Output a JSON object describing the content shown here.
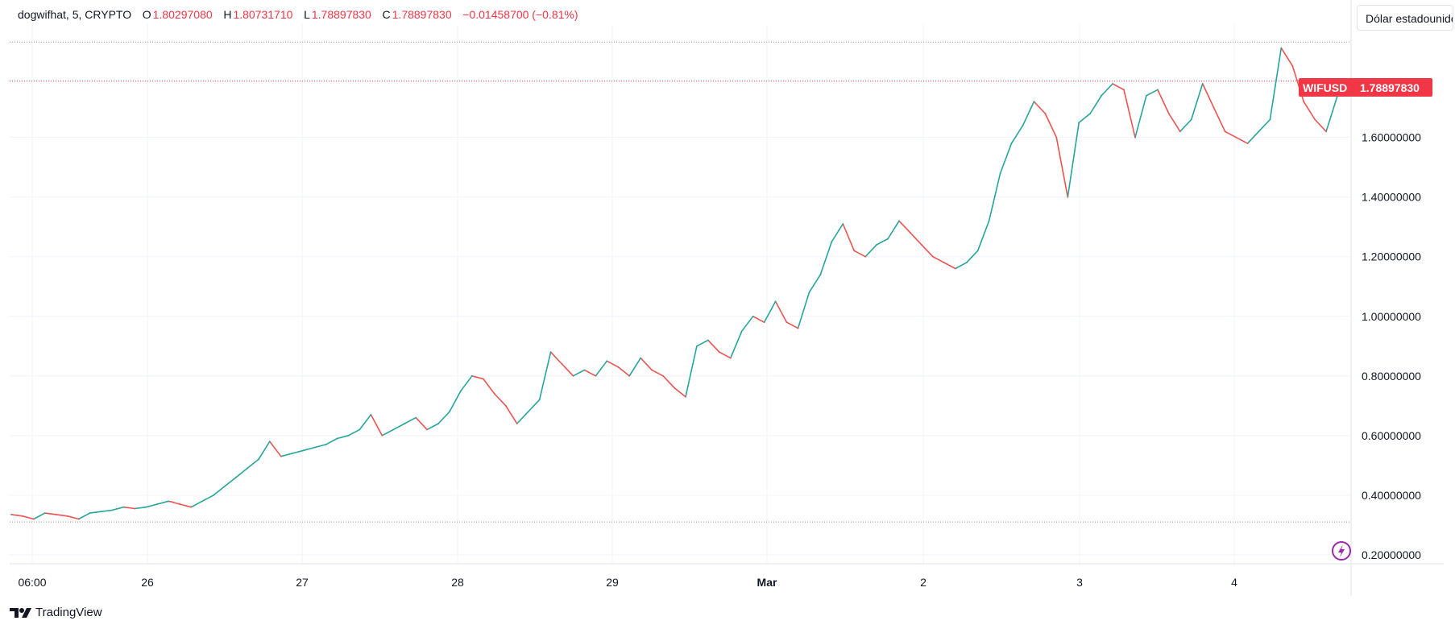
{
  "legend": {
    "symbol": "dogwifhat, 5, CRYPTO",
    "o_label": "O",
    "o_value": "1.80297080",
    "h_label": "H",
    "h_value": "1.80731710",
    "l_label": "L",
    "l_value": "1.78897830",
    "c_label": "C",
    "c_value": "1.78897830",
    "change": "−0.01458700 (−0.81%)"
  },
  "currency_button": "Dólar estadounidense",
  "branding": "TradingView",
  "price_tag": {
    "ticker": "WIFUSD",
    "price": "1.78897830"
  },
  "colors": {
    "up": "#26a69a",
    "down": "#ef5350",
    "tag": "#f23645",
    "grid": "#f0f3fa",
    "accent": "#9c27b0"
  },
  "icons": {
    "lightning": "lightning-icon",
    "logo": "tradingview-logo-icon"
  },
  "chart_data": {
    "type": "line",
    "title": "",
    "xlabel": "",
    "ylabel": "",
    "x_ticks": [
      "06:00",
      "26",
      "27",
      "28",
      "29",
      "Mar",
      "2",
      "3",
      "4"
    ],
    "y_ticks": [
      "0.20000000",
      "0.40000000",
      "0.60000000",
      "0.80000000",
      "1.00000000",
      "1.20000000",
      "1.40000000",
      "1.60000000"
    ],
    "ylim": [
      0.17,
      1.98
    ],
    "grid": true,
    "reference_lines": {
      "high": 1.92,
      "last": 1.7889783,
      "low": 0.31
    },
    "series": [
      {
        "values": [
          0.335,
          0.33,
          0.32,
          0.34,
          0.335,
          0.33,
          0.32,
          0.34,
          0.345,
          0.35,
          0.36,
          0.355,
          0.36,
          0.37,
          0.38,
          0.37,
          0.36,
          0.38,
          0.4,
          0.43,
          0.46,
          0.49,
          0.52,
          0.58,
          0.53,
          0.54,
          0.55,
          0.56,
          0.57,
          0.59,
          0.6,
          0.62,
          0.67,
          0.6,
          0.62,
          0.64,
          0.66,
          0.62,
          0.64,
          0.68,
          0.75,
          0.8,
          0.79,
          0.74,
          0.7,
          0.64,
          0.68,
          0.72,
          0.88,
          0.84,
          0.8,
          0.82,
          0.8,
          0.85,
          0.83,
          0.8,
          0.86,
          0.82,
          0.8,
          0.76,
          0.73,
          0.9,
          0.92,
          0.88,
          0.86,
          0.95,
          1.0,
          0.98,
          1.05,
          0.98,
          0.96,
          1.08,
          1.14,
          1.25,
          1.31,
          1.22,
          1.2,
          1.24,
          1.26,
          1.32,
          1.28,
          1.24,
          1.2,
          1.18,
          1.16,
          1.18,
          1.22,
          1.32,
          1.48,
          1.58,
          1.64,
          1.72,
          1.68,
          1.6,
          1.4,
          1.65,
          1.68,
          1.74,
          1.78,
          1.76,
          1.6,
          1.74,
          1.76,
          1.68,
          1.62,
          1.66,
          1.78,
          1.7,
          1.62,
          1.6,
          1.58,
          1.62,
          1.66,
          1.9,
          1.84,
          1.72,
          1.66,
          1.62,
          1.74,
          1.78
        ]
      }
    ]
  }
}
